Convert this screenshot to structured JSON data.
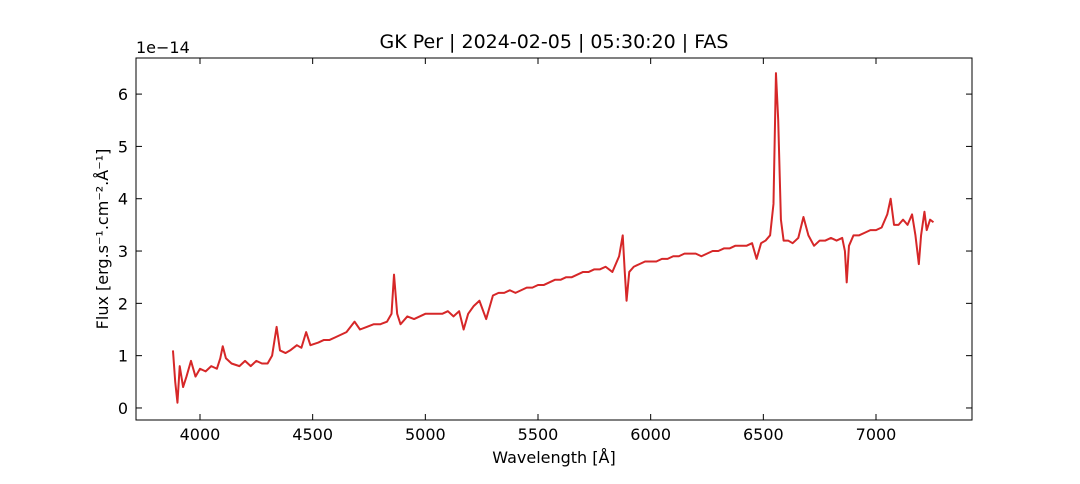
{
  "chart_data": {
    "type": "line",
    "title": "GK Per | 2024-02-05 | 05:30:20 | FAS",
    "x_label": "Wavelength [Å]",
    "y_label": "Flux [erg.s⁻¹.cm⁻².Å⁻¹]",
    "y_offset_label": "1e−14",
    "xlim": [
      3716,
      7426
    ],
    "ylim": [
      -0.23,
      6.69
    ],
    "xticks": [
      4000,
      4500,
      5000,
      5500,
      6000,
      6500,
      7000
    ],
    "yticks": [
      0,
      1,
      2,
      3,
      4,
      5,
      6
    ],
    "x": [
      3880,
      3890,
      3900,
      3910,
      3925,
      3940,
      3960,
      3980,
      4000,
      4025,
      4050,
      4075,
      4090,
      4101,
      4115,
      4140,
      4175,
      4200,
      4225,
      4250,
      4275,
      4300,
      4320,
      4340,
      4355,
      4380,
      4400,
      4430,
      4450,
      4471,
      4490,
      4525,
      4550,
      4575,
      4600,
      4625,
      4650,
      4686,
      4710,
      4740,
      4770,
      4800,
      4830,
      4850,
      4861,
      4875,
      4890,
      4920,
      4950,
      4975,
      5000,
      5025,
      5050,
      5075,
      5100,
      5125,
      5150,
      5170,
      5190,
      5215,
      5240,
      5270,
      5300,
      5325,
      5350,
      5375,
      5400,
      5425,
      5450,
      5475,
      5500,
      5525,
      5550,
      5575,
      5600,
      5625,
      5650,
      5675,
      5700,
      5725,
      5750,
      5775,
      5800,
      5830,
      5860,
      5876,
      5885,
      5893,
      5905,
      5925,
      5950,
      5975,
      6000,
      6025,
      6050,
      6075,
      6100,
      6125,
      6150,
      6175,
      6200,
      6225,
      6250,
      6275,
      6300,
      6325,
      6350,
      6375,
      6400,
      6425,
      6450,
      6470,
      6490,
      6510,
      6530,
      6545,
      6556,
      6566,
      6578,
      6590,
      6610,
      6630,
      6655,
      6678,
      6700,
      6725,
      6750,
      6775,
      6800,
      6825,
      6850,
      6862,
      6870,
      6880,
      6900,
      6925,
      6950,
      6975,
      7000,
      7025,
      7050,
      7065,
      7080,
      7100,
      7120,
      7140,
      7160,
      7175,
      7190,
      7200,
      7215,
      7225,
      7240,
      7255
    ],
    "series": [
      {
        "name": "GK Per",
        "color": "#d62728",
        "values": [
          1.1,
          0.5,
          0.1,
          0.8,
          0.4,
          0.6,
          0.9,
          0.6,
          0.75,
          0.7,
          0.8,
          0.75,
          0.95,
          1.18,
          0.95,
          0.85,
          0.8,
          0.9,
          0.8,
          0.9,
          0.85,
          0.85,
          1.0,
          1.55,
          1.1,
          1.05,
          1.1,
          1.2,
          1.15,
          1.45,
          1.2,
          1.25,
          1.3,
          1.3,
          1.35,
          1.4,
          1.45,
          1.65,
          1.5,
          1.55,
          1.6,
          1.6,
          1.65,
          1.8,
          2.55,
          1.8,
          1.6,
          1.75,
          1.7,
          1.75,
          1.8,
          1.8,
          1.8,
          1.8,
          1.85,
          1.75,
          1.85,
          1.5,
          1.8,
          1.95,
          2.05,
          1.7,
          2.15,
          2.2,
          2.2,
          2.25,
          2.2,
          2.25,
          2.3,
          2.3,
          2.35,
          2.35,
          2.4,
          2.45,
          2.45,
          2.5,
          2.5,
          2.55,
          2.6,
          2.6,
          2.65,
          2.65,
          2.7,
          2.6,
          2.9,
          3.3,
          2.6,
          2.05,
          2.6,
          2.7,
          2.75,
          2.8,
          2.8,
          2.8,
          2.85,
          2.85,
          2.9,
          2.9,
          2.95,
          2.95,
          2.95,
          2.9,
          2.95,
          3.0,
          3.0,
          3.05,
          3.05,
          3.1,
          3.1,
          3.1,
          3.15,
          2.85,
          3.15,
          3.2,
          3.3,
          3.9,
          6.4,
          5.5,
          3.6,
          3.2,
          3.2,
          3.15,
          3.25,
          3.65,
          3.3,
          3.1,
          3.2,
          3.2,
          3.25,
          3.2,
          3.25,
          3.0,
          2.4,
          3.1,
          3.3,
          3.3,
          3.35,
          3.4,
          3.4,
          3.45,
          3.7,
          4.0,
          3.5,
          3.5,
          3.6,
          3.5,
          3.7,
          3.3,
          2.75,
          3.3,
          3.75,
          3.4,
          3.6,
          3.55
        ]
      }
    ]
  }
}
